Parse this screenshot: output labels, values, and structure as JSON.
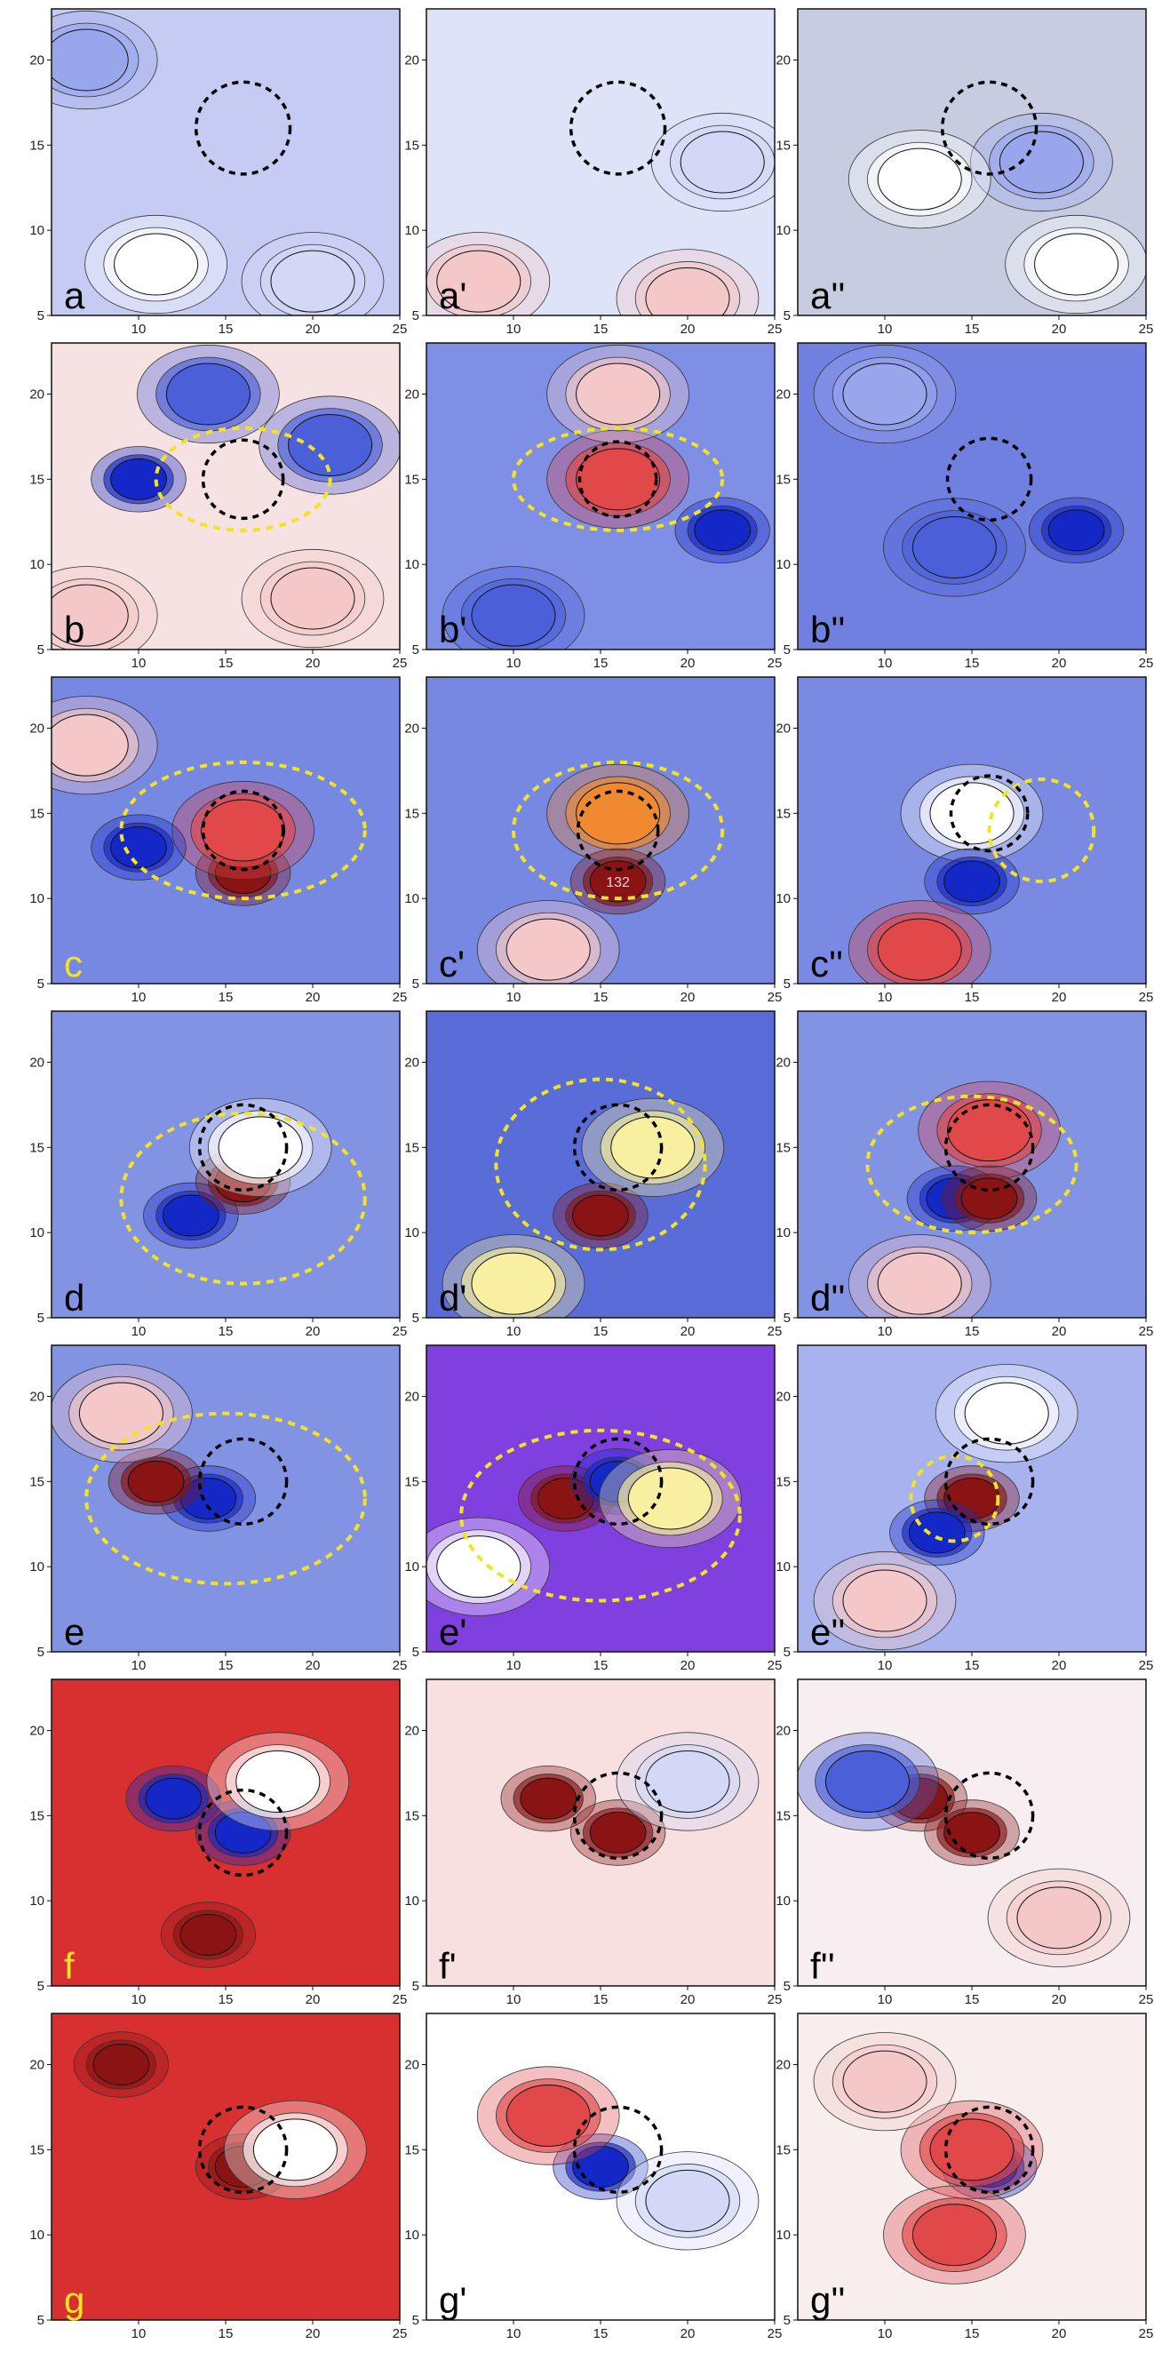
{
  "chart_data": {
    "type": "heatmap",
    "grid": {
      "rows": 7,
      "cols": 3
    },
    "xlim": [
      5,
      25
    ],
    "ylim": [
      5,
      23
    ],
    "xticks": [
      "10",
      "15",
      "20",
      "25"
    ],
    "yticks": [
      "5",
      "10",
      "15",
      "20"
    ],
    "colors": {
      "deep_blue": "#1428c8",
      "blue": "#4a5fd8",
      "light_blue": "#9aa6ec",
      "pale_blue": "#d3d8f6",
      "white": "#ffffff",
      "pale_red": "#f4c8c8",
      "red": "#e0484a",
      "dark_red": "#8a1414",
      "orange": "#f08a30",
      "yellow": "#f8f0a0",
      "purple": "#8040e0",
      "overlay_yellow": "#f2e422",
      "overlay_black": "#000000",
      "gray": "#c8cce0"
    },
    "panels": [
      {
        "label": "a",
        "label_color": "#000000",
        "bg": "#c5cbf2",
        "circle": {
          "cx": 16,
          "cy": 16,
          "r": 2.7
        },
        "features": [
          {
            "x": 11,
            "y": 8,
            "level": "white"
          },
          {
            "x": 20,
            "y": 7,
            "level": "pale_blue"
          },
          {
            "x": 7,
            "y": 20,
            "level": "light_blue"
          }
        ]
      },
      {
        "label": "a'",
        "label_color": "#000000",
        "bg": "#dfe3f8",
        "circle": {
          "cx": 16,
          "cy": 16,
          "r": 2.7
        },
        "features": [
          {
            "x": 8,
            "y": 7,
            "level": "pale_red"
          },
          {
            "x": 20,
            "y": 6,
            "level": "pale_red"
          },
          {
            "x": 22,
            "y": 14,
            "level": "pale_blue"
          }
        ]
      },
      {
        "label": "a''",
        "label_color": "#000000",
        "bg": "#c8cce0",
        "circle": {
          "cx": 16,
          "cy": 16,
          "r": 2.7
        },
        "features": [
          {
            "x": 19,
            "y": 14,
            "level": "light_blue"
          },
          {
            "x": 12,
            "y": 13,
            "level": "white"
          },
          {
            "x": 21,
            "y": 8,
            "level": "white"
          }
        ]
      },
      {
        "label": "b",
        "label_color": "#000000",
        "bg": "#f6e2e2",
        "circle": {
          "cx": 16,
          "cy": 15,
          "r": 2.3
        },
        "ellipse": {
          "cx": 16,
          "cy": 15,
          "rx": 5,
          "ry": 3
        },
        "features": [
          {
            "x": 10,
            "y": 15,
            "level": "deep_blue"
          },
          {
            "x": 21,
            "y": 17,
            "level": "blue"
          },
          {
            "x": 14,
            "y": 20,
            "level": "blue"
          },
          {
            "x": 7,
            "y": 7,
            "level": "pale_red"
          },
          {
            "x": 20,
            "y": 8,
            "level": "pale_red"
          }
        ]
      },
      {
        "label": "b'",
        "label_color": "#000000",
        "bg": "#7f8fe6",
        "circle": {
          "cx": 16,
          "cy": 15,
          "r": 2.2
        },
        "ellipse": {
          "cx": 16,
          "cy": 15,
          "rx": 6,
          "ry": 3
        },
        "features": [
          {
            "x": 16,
            "y": 15,
            "level": "red"
          },
          {
            "x": 22,
            "y": 12,
            "level": "deep_blue"
          },
          {
            "x": 10,
            "y": 7,
            "level": "blue"
          },
          {
            "x": 16,
            "y": 20,
            "level": "pale_red"
          }
        ]
      },
      {
        "label": "b''",
        "label_color": "#000000",
        "bg": "#7080e0",
        "circle": {
          "cx": 16,
          "cy": 15,
          "r": 2.4
        },
        "features": [
          {
            "x": 21,
            "y": 12,
            "level": "deep_blue"
          },
          {
            "x": 10,
            "y": 20,
            "level": "light_blue"
          },
          {
            "x": 14,
            "y": 11,
            "level": "blue"
          }
        ]
      },
      {
        "label": "c",
        "label_color": "#f2e422",
        "bg": "#7688e2",
        "circle": {
          "cx": 16,
          "cy": 14,
          "r": 2.3
        },
        "ellipse": {
          "cx": 16,
          "cy": 14,
          "rx": 7,
          "ry": 4
        },
        "features": [
          {
            "x": 16,
            "y": 11.5,
            "level": "dark_red"
          },
          {
            "x": 16,
            "y": 14,
            "level": "red"
          },
          {
            "x": 10,
            "y": 13,
            "level": "deep_blue"
          },
          {
            "x": 7,
            "y": 19,
            "level": "pale_red"
          }
        ]
      },
      {
        "label": "c'",
        "label_color": "#000000",
        "bg": "#7688e2",
        "circle": {
          "cx": 16,
          "cy": 14,
          "r": 2.3
        },
        "ellipse": {
          "cx": 16,
          "cy": 14,
          "rx": 6,
          "ry": 4
        },
        "features": [
          {
            "x": 16,
            "y": 15,
            "level": "orange"
          },
          {
            "x": 16,
            "y": 11,
            "level": "dark_red",
            "text": "132"
          },
          {
            "x": 12,
            "y": 7,
            "level": "pale_red"
          }
        ]
      },
      {
        "label": "c''",
        "label_color": "#000000",
        "bg": "#7a8ae2",
        "circle": {
          "cx": 16,
          "cy": 15,
          "r": 2.2
        },
        "ellipse": {
          "cx": 19,
          "cy": 14,
          "rx": 3,
          "ry": 3
        },
        "features": [
          {
            "x": 15,
            "y": 15,
            "level": "white"
          },
          {
            "x": 15,
            "y": 11,
            "level": "deep_blue"
          },
          {
            "x": 12,
            "y": 7,
            "level": "red"
          }
        ]
      },
      {
        "label": "d",
        "label_color": "#000000",
        "bg": "#8393e4",
        "circle": {
          "cx": 16,
          "cy": 15,
          "r": 2.5
        },
        "ellipse": {
          "cx": 16,
          "cy": 12,
          "rx": 7,
          "ry": 5
        },
        "features": [
          {
            "x": 13,
            "y": 11,
            "level": "deep_blue"
          },
          {
            "x": 16,
            "y": 13,
            "level": "dark_red"
          },
          {
            "x": 17,
            "y": 15,
            "level": "white"
          }
        ]
      },
      {
        "label": "d'",
        "label_color": "#000000",
        "bg": "#5a6cd8",
        "circle": {
          "cx": 16,
          "cy": 15,
          "r": 2.5
        },
        "ellipse": {
          "cx": 15,
          "cy": 14,
          "rx": 6,
          "ry": 5
        },
        "features": [
          {
            "x": 15,
            "y": 11,
            "level": "dark_red"
          },
          {
            "x": 18,
            "y": 15,
            "level": "yellow"
          },
          {
            "x": 10,
            "y": 7,
            "level": "yellow"
          }
        ]
      },
      {
        "label": "d''",
        "label_color": "#000000",
        "bg": "#8393e4",
        "circle": {
          "cx": 16,
          "cy": 15,
          "r": 2.5
        },
        "ellipse": {
          "cx": 15,
          "cy": 14,
          "rx": 6,
          "ry": 4
        },
        "features": [
          {
            "x": 16,
            "y": 16,
            "level": "red"
          },
          {
            "x": 14,
            "y": 12,
            "level": "deep_blue"
          },
          {
            "x": 16,
            "y": 12,
            "level": "dark_red"
          },
          {
            "x": 12,
            "y": 7,
            "level": "pale_red"
          }
        ]
      },
      {
        "label": "e",
        "label_color": "#000000",
        "bg": "#8393e4",
        "circle": {
          "cx": 16,
          "cy": 15,
          "r": 2.5
        },
        "ellipse": {
          "cx": 15,
          "cy": 14,
          "rx": 8,
          "ry": 5
        },
        "features": [
          {
            "x": 14,
            "y": 14,
            "level": "deep_blue"
          },
          {
            "x": 11,
            "y": 15,
            "level": "dark_red"
          },
          {
            "x": 9,
            "y": 19,
            "level": "pale_red"
          }
        ]
      },
      {
        "label": "e'",
        "label_color": "#000000",
        "bg": "#8040e0",
        "circle": {
          "cx": 16,
          "cy": 15,
          "r": 2.5
        },
        "ellipse": {
          "cx": 15,
          "cy": 13,
          "rx": 8,
          "ry": 5
        },
        "features": [
          {
            "x": 13,
            "y": 14,
            "level": "dark_red"
          },
          {
            "x": 16,
            "y": 15,
            "level": "deep_blue"
          },
          {
            "x": 19,
            "y": 14,
            "level": "yellow"
          },
          {
            "x": 8,
            "y": 10,
            "level": "white"
          }
        ]
      },
      {
        "label": "e''",
        "label_color": "#000000",
        "bg": "#a7b2ee",
        "circle": {
          "cx": 16,
          "cy": 15,
          "r": 2.5
        },
        "ellipse": {
          "cx": 14,
          "cy": 14,
          "rx": 2.5,
          "ry": 2.5
        },
        "features": [
          {
            "x": 15,
            "y": 14,
            "level": "dark_red"
          },
          {
            "x": 13,
            "y": 12,
            "level": "deep_blue"
          },
          {
            "x": 10,
            "y": 8,
            "level": "pale_red"
          },
          {
            "x": 17,
            "y": 19,
            "level": "white"
          }
        ]
      },
      {
        "label": "f",
        "label_color": "#f2e422",
        "bg": "#d83030",
        "circle": {
          "cx": 16,
          "cy": 14,
          "r": 2.5
        },
        "features": [
          {
            "x": 12,
            "y": 16,
            "level": "deep_blue"
          },
          {
            "x": 16,
            "y": 14,
            "level": "deep_blue"
          },
          {
            "x": 18,
            "y": 17,
            "level": "white"
          },
          {
            "x": 14,
            "y": 8,
            "level": "dark_red"
          }
        ]
      },
      {
        "label": "f'",
        "label_color": "#000000",
        "bg": "#f8e0e0",
        "circle": {
          "cx": 16,
          "cy": 15,
          "r": 2.5
        },
        "features": [
          {
            "x": 12,
            "y": 16,
            "level": "dark_red"
          },
          {
            "x": 16,
            "y": 14,
            "level": "dark_red"
          },
          {
            "x": 20,
            "y": 17,
            "level": "pale_blue"
          }
        ]
      },
      {
        "label": "f''",
        "label_color": "#000000",
        "bg": "#f6eef0",
        "circle": {
          "cx": 16,
          "cy": 15,
          "r": 2.5
        },
        "features": [
          {
            "x": 12,
            "y": 16,
            "level": "dark_red"
          },
          {
            "x": 15,
            "y": 14,
            "level": "dark_red"
          },
          {
            "x": 9,
            "y": 17,
            "level": "blue"
          },
          {
            "x": 20,
            "y": 9,
            "level": "pale_red"
          }
        ]
      },
      {
        "label": "g",
        "label_color": "#f2e422",
        "bg": "#d83030",
        "circle": {
          "cx": 16,
          "cy": 15,
          "r": 2.5
        },
        "features": [
          {
            "x": 16,
            "y": 14,
            "level": "dark_red"
          },
          {
            "x": 19,
            "y": 15,
            "level": "white"
          },
          {
            "x": 9,
            "y": 20,
            "level": "dark_red"
          }
        ]
      },
      {
        "label": "g'",
        "label_color": "#000000",
        "bg": "#ffffff",
        "circle": {
          "cx": 16,
          "cy": 15,
          "r": 2.5
        },
        "features": [
          {
            "x": 15,
            "y": 14,
            "level": "deep_blue"
          },
          {
            "x": 12,
            "y": 17,
            "level": "red"
          },
          {
            "x": 20,
            "y": 12,
            "level": "pale_blue"
          }
        ]
      },
      {
        "label": "g''",
        "label_color": "#000000",
        "bg": "#f8eeee",
        "circle": {
          "cx": 16,
          "cy": 15,
          "r": 2.5
        },
        "features": [
          {
            "x": 16,
            "y": 14,
            "level": "deep_blue"
          },
          {
            "x": 15,
            "y": 15,
            "level": "red"
          },
          {
            "x": 10,
            "y": 19,
            "level": "pale_red"
          },
          {
            "x": 14,
            "y": 10,
            "level": "red"
          }
        ]
      }
    ]
  }
}
